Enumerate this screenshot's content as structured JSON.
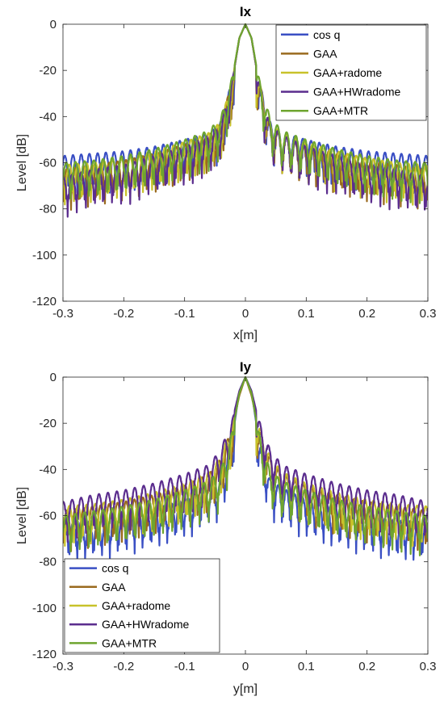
{
  "chart_data": [
    {
      "type": "line",
      "title": "Ix",
      "xlabel": "x[m]",
      "ylabel": "Level [dB]",
      "xlim": [
        -0.3,
        0.3
      ],
      "ylim": [
        -120,
        0
      ],
      "xticks": [
        -0.3,
        -0.2,
        -0.1,
        0,
        0.1,
        0.2,
        0.3
      ],
      "yticks": [
        0,
        -20,
        -40,
        -60,
        -80,
        -100,
        -120
      ],
      "xtick_labels": [
        "-0.3",
        "-0.2",
        "-0.1",
        "0",
        "0.1",
        "0.2",
        "0.3"
      ],
      "ytick_labels": [
        "0",
        "-20",
        "-40",
        "-60",
        "-80",
        "-100",
        "-120"
      ],
      "grid": false,
      "legend_position": "top-right",
      "series": [
        {
          "name": "cos q",
          "color": "#3a4fc4",
          "x": [
            -0.3,
            -0.25,
            -0.2,
            -0.15,
            -0.1,
            -0.06,
            -0.04,
            -0.02,
            -0.01,
            0,
            0.01,
            0.02,
            0.04,
            0.06,
            0.1,
            0.15,
            0.2,
            0.25,
            0.3
          ],
          "y": [
            -57,
            -56,
            -55,
            -53,
            -50,
            -47,
            -42,
            -22,
            -6,
            0,
            -6,
            -22,
            -42,
            -47,
            -50,
            -53,
            -55,
            -56,
            -57
          ]
        },
        {
          "name": "GAA",
          "color": "#9a6a1e",
          "x": [
            -0.3,
            -0.25,
            -0.2,
            -0.15,
            -0.1,
            -0.06,
            -0.04,
            -0.02,
            -0.01,
            0,
            0.01,
            0.02,
            0.04,
            0.06,
            0.1,
            0.15,
            0.2,
            0.25,
            0.3
          ],
          "y": [
            -63,
            -61,
            -59,
            -56,
            -52,
            -48,
            -43,
            -22,
            -6,
            0,
            -6,
            -22,
            -43,
            -48,
            -52,
            -56,
            -59,
            -61,
            -63
          ]
        },
        {
          "name": "GAA+radome",
          "color": "#c8c22a",
          "x": [
            -0.3,
            -0.25,
            -0.2,
            -0.15,
            -0.1,
            -0.06,
            -0.04,
            -0.02,
            -0.01,
            0,
            0.01,
            0.02,
            0.04,
            0.06,
            0.1,
            0.15,
            0.2,
            0.25,
            0.3
          ],
          "y": [
            -61,
            -60,
            -58,
            -55,
            -51,
            -47,
            -42,
            -22,
            -6,
            0,
            -6,
            -22,
            -42,
            -47,
            -51,
            -55,
            -58,
            -60,
            -61
          ]
        },
        {
          "name": "GAA+HWradome",
          "color": "#5b2d8e",
          "x": [
            -0.3,
            -0.25,
            -0.2,
            -0.15,
            -0.1,
            -0.06,
            -0.04,
            -0.02,
            -0.01,
            0,
            0.01,
            0.02,
            0.04,
            0.06,
            0.1,
            0.15,
            0.2,
            0.25,
            0.3
          ],
          "y": [
            -66,
            -63,
            -61,
            -57,
            -53,
            -48,
            -43,
            -22,
            -6,
            0,
            -6,
            -22,
            -43,
            -48,
            -53,
            -57,
            -61,
            -63,
            -66
          ]
        },
        {
          "name": "GAA+MTR",
          "color": "#6ea52f",
          "x": [
            -0.3,
            -0.25,
            -0.2,
            -0.15,
            -0.1,
            -0.06,
            -0.04,
            -0.02,
            -0.01,
            0,
            0.01,
            0.02,
            0.04,
            0.06,
            0.1,
            0.15,
            0.2,
            0.25,
            0.3
          ],
          "y": [
            -60,
            -59,
            -57,
            -54,
            -50,
            -46,
            -40,
            -21,
            -6,
            0,
            -6,
            -21,
            -40,
            -46,
            -50,
            -54,
            -57,
            -59,
            -60
          ]
        }
      ]
    },
    {
      "type": "line",
      "title": "Iy",
      "xlabel": "y[m]",
      "ylabel": "Level [dB]",
      "xlim": [
        -0.3,
        0.3
      ],
      "ylim": [
        -120,
        0
      ],
      "xticks": [
        -0.3,
        -0.2,
        -0.1,
        0,
        0.1,
        0.2,
        0.3
      ],
      "yticks": [
        0,
        -20,
        -40,
        -60,
        -80,
        -100,
        -120
      ],
      "xtick_labels": [
        "-0.3",
        "-0.2",
        "-0.1",
        "0",
        "0.1",
        "0.2",
        "0.3"
      ],
      "ytick_labels": [
        "0",
        "-20",
        "-40",
        "-60",
        "-80",
        "-100",
        "-120"
      ],
      "grid": false,
      "legend_position": "bottom-left",
      "series": [
        {
          "name": "cos q",
          "color": "#3a4fc4",
          "x": [
            -0.3,
            -0.25,
            -0.2,
            -0.15,
            -0.1,
            -0.06,
            -0.04,
            -0.02,
            -0.01,
            0,
            0.01,
            0.02,
            0.04,
            0.06,
            0.1,
            0.15,
            0.2,
            0.25,
            0.3
          ],
          "y": [
            -63,
            -62,
            -60,
            -57,
            -53,
            -48,
            -44,
            -24,
            -6,
            0,
            -6,
            -24,
            -44,
            -48,
            -53,
            -57,
            -60,
            -62,
            -63
          ]
        },
        {
          "name": "GAA",
          "color": "#9a6a1e",
          "x": [
            -0.3,
            -0.25,
            -0.2,
            -0.15,
            -0.1,
            -0.06,
            -0.04,
            -0.02,
            -0.01,
            0,
            0.01,
            0.02,
            0.04,
            0.06,
            0.1,
            0.15,
            0.2,
            0.25,
            0.3
          ],
          "y": [
            -58,
            -56,
            -54,
            -51,
            -47,
            -42,
            -35,
            -20,
            -8,
            0,
            -8,
            -20,
            -35,
            -42,
            -47,
            -51,
            -54,
            -56,
            -58
          ]
        },
        {
          "name": "GAA+radome",
          "color": "#c8c22a",
          "x": [
            -0.3,
            -0.25,
            -0.2,
            -0.15,
            -0.1,
            -0.06,
            -0.04,
            -0.02,
            -0.01,
            0,
            0.01,
            0.02,
            0.04,
            0.06,
            0.1,
            0.15,
            0.2,
            0.25,
            0.3
          ],
          "y": [
            -56,
            -55,
            -53,
            -50,
            -46,
            -41,
            -34,
            -19,
            -7,
            0,
            -7,
            -19,
            -34,
            -41,
            -46,
            -50,
            -53,
            -55,
            -56
          ]
        },
        {
          "name": "GAA+HWradome",
          "color": "#5b2d8e",
          "x": [
            -0.3,
            -0.25,
            -0.2,
            -0.15,
            -0.1,
            -0.06,
            -0.04,
            -0.02,
            -0.01,
            0,
            0.01,
            0.02,
            0.04,
            0.06,
            0.1,
            0.15,
            0.2,
            0.25,
            0.3
          ],
          "y": [
            -54,
            -51,
            -49,
            -46,
            -42,
            -38,
            -31,
            -17,
            -6,
            0,
            -6,
            -17,
            -31,
            -38,
            -42,
            -46,
            -49,
            -51,
            -54
          ]
        },
        {
          "name": "GAA+MTR",
          "color": "#6ea52f",
          "x": [
            -0.3,
            -0.25,
            -0.2,
            -0.15,
            -0.1,
            -0.06,
            -0.04,
            -0.02,
            -0.01,
            0,
            0.01,
            0.02,
            0.04,
            0.06,
            0.1,
            0.15,
            0.2,
            0.25,
            0.3
          ],
          "y": [
            -60,
            -58,
            -56,
            -53,
            -49,
            -45,
            -40,
            -22,
            -7,
            0,
            -7,
            -22,
            -40,
            -45,
            -49,
            -53,
            -56,
            -58,
            -60
          ]
        }
      ]
    }
  ]
}
